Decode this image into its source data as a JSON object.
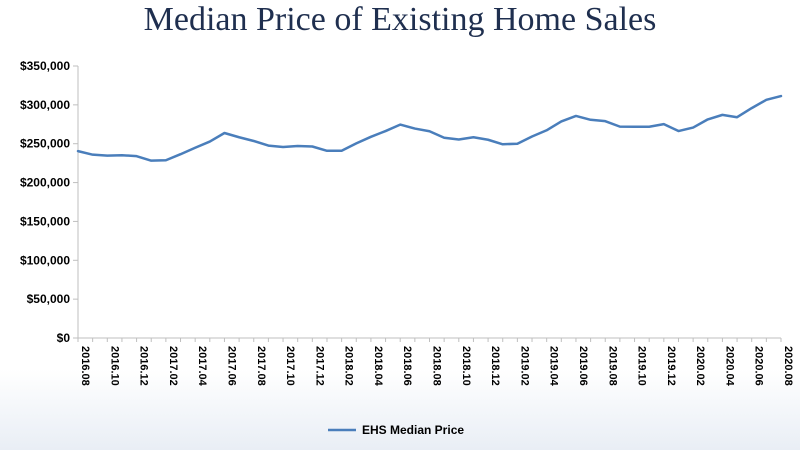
{
  "chart_data": {
    "type": "line",
    "title": "Median Price of Existing Home Sales",
    "xlabel": "",
    "ylabel": "",
    "ylim": [
      0,
      350000
    ],
    "yticks": [
      "$0",
      "$50,000",
      "$100,000",
      "$150,000",
      "$200,000",
      "$250,000",
      "$300,000",
      "$350,000"
    ],
    "ytick_values": [
      0,
      50000,
      100000,
      150000,
      200000,
      250000,
      300000,
      350000
    ],
    "x": [
      "2016.08",
      "2016.09",
      "2016.10",
      "2016.11",
      "2016.12",
      "2017.01",
      "2017.02",
      "2017.03",
      "2017.04",
      "2017.05",
      "2017.06",
      "2017.07",
      "2017.08",
      "2017.09",
      "2017.10",
      "2017.11",
      "2017.12",
      "2018.01",
      "2018.02",
      "2018.03",
      "2018.04",
      "2018.05",
      "2018.06",
      "2018.07",
      "2018.08",
      "2018.09",
      "2018.10",
      "2018.11",
      "2018.12",
      "2019.01",
      "2019.02",
      "2019.03",
      "2019.04",
      "2019.05",
      "2019.06",
      "2019.07",
      "2019.08",
      "2019.09",
      "2019.10",
      "2019.11",
      "2019.12",
      "2020.01",
      "2020.02",
      "2020.03",
      "2020.04",
      "2020.05",
      "2020.06",
      "2020.07",
      "2020.08"
    ],
    "xtick_labels": [
      "2016.08",
      "2016.10",
      "2016.12",
      "2017.02",
      "2017.04",
      "2017.06",
      "2017.08",
      "2017.10",
      "2017.12",
      "2018.02",
      "2018.04",
      "2018.06",
      "2018.08",
      "2018.10",
      "2018.12",
      "2019.02",
      "2019.04",
      "2019.06",
      "2019.08",
      "2019.10",
      "2019.12",
      "2020.02",
      "2020.04",
      "2020.06",
      "2020.08"
    ],
    "series": [
      {
        "name": "EHS Median Price",
        "color": "#4a7ebb",
        "values": [
          240500,
          235900,
          234600,
          235200,
          234000,
          228200,
          228700,
          236500,
          244800,
          252800,
          263800,
          258300,
          253500,
          247600,
          245800,
          247100,
          246400,
          240900,
          241000,
          250400,
          258900,
          266300,
          274600,
          269500,
          266000,
          257700,
          255400,
          258300,
          255100,
          249300,
          250000,
          259300,
          267300,
          278700,
          285700,
          280800,
          279000,
          272000,
          271800,
          271800,
          275200,
          266300,
          270800,
          281300,
          287100,
          284100,
          295800,
          306500,
          311300
        ]
      }
    ],
    "grid": false,
    "legend_position": "bottom"
  }
}
